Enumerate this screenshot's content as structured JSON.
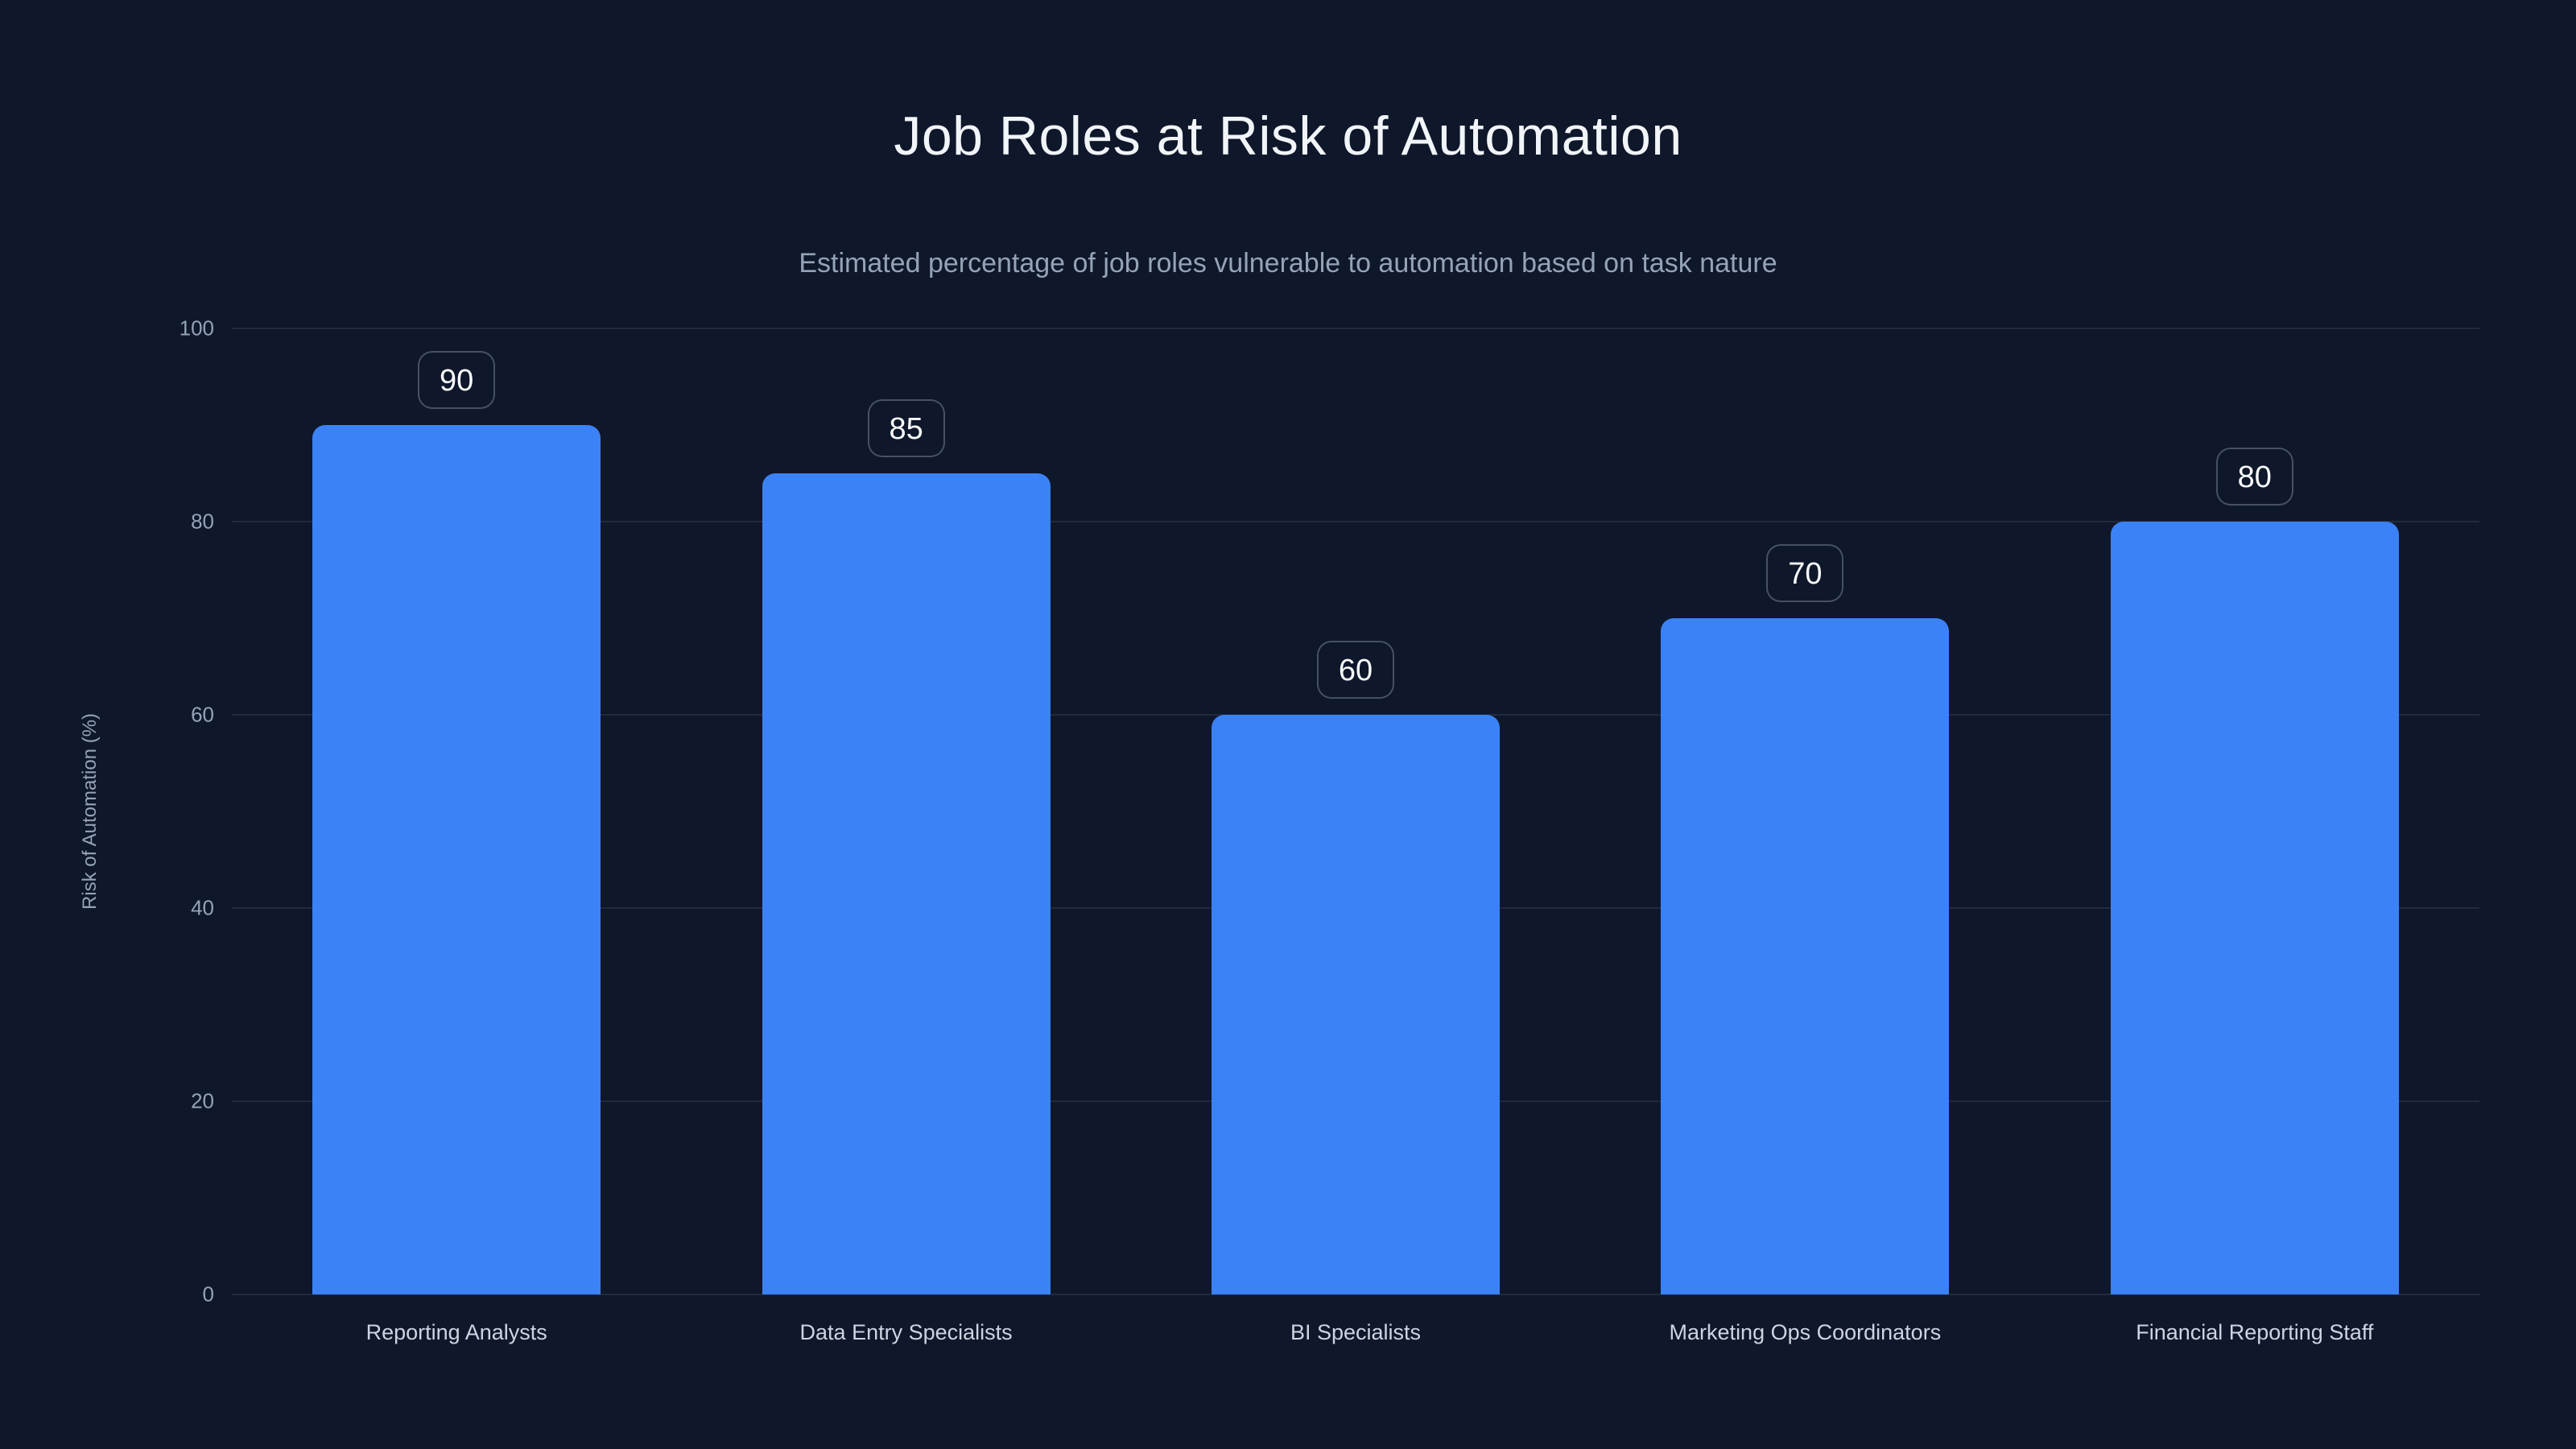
{
  "header": {
    "title": "Job Roles at Risk of Automation",
    "subtitle": "Estimated percentage of job roles vulnerable to automation based on task nature"
  },
  "chart_data": {
    "type": "bar",
    "title": "Job Roles at Risk of Automation",
    "subtitle": "Estimated percentage of job roles vulnerable to automation based on task nature",
    "categories": [
      "Reporting Analysts",
      "Data Entry Specialists",
      "BI Specialists",
      "Marketing Ops Coordinators",
      "Financial Reporting Staff"
    ],
    "values": [
      90,
      85,
      60,
      70,
      80
    ],
    "value_labels": [
      "90",
      "85",
      "60",
      "70",
      "80"
    ],
    "xlabel": "",
    "ylabel": "Risk of Automation (%)",
    "ylim": [
      0,
      100
    ],
    "yticks": [
      0,
      20,
      40,
      60,
      80,
      100
    ],
    "grid": "horizontal",
    "legend": "none",
    "colors": {
      "background": "#0f172a",
      "bar": "#3b82f6",
      "gridline": "rgba(148,163,184,0.14)",
      "title_text": "#f1f5f9",
      "subtitle_text": "#94a3b8",
      "tick_text": "#94a3b8",
      "category_text": "#cbd5e1",
      "badge_text": "#f8fafc",
      "badge_border": "rgba(148,163,184,0.42)",
      "badge_background": "#0f172a"
    }
  }
}
